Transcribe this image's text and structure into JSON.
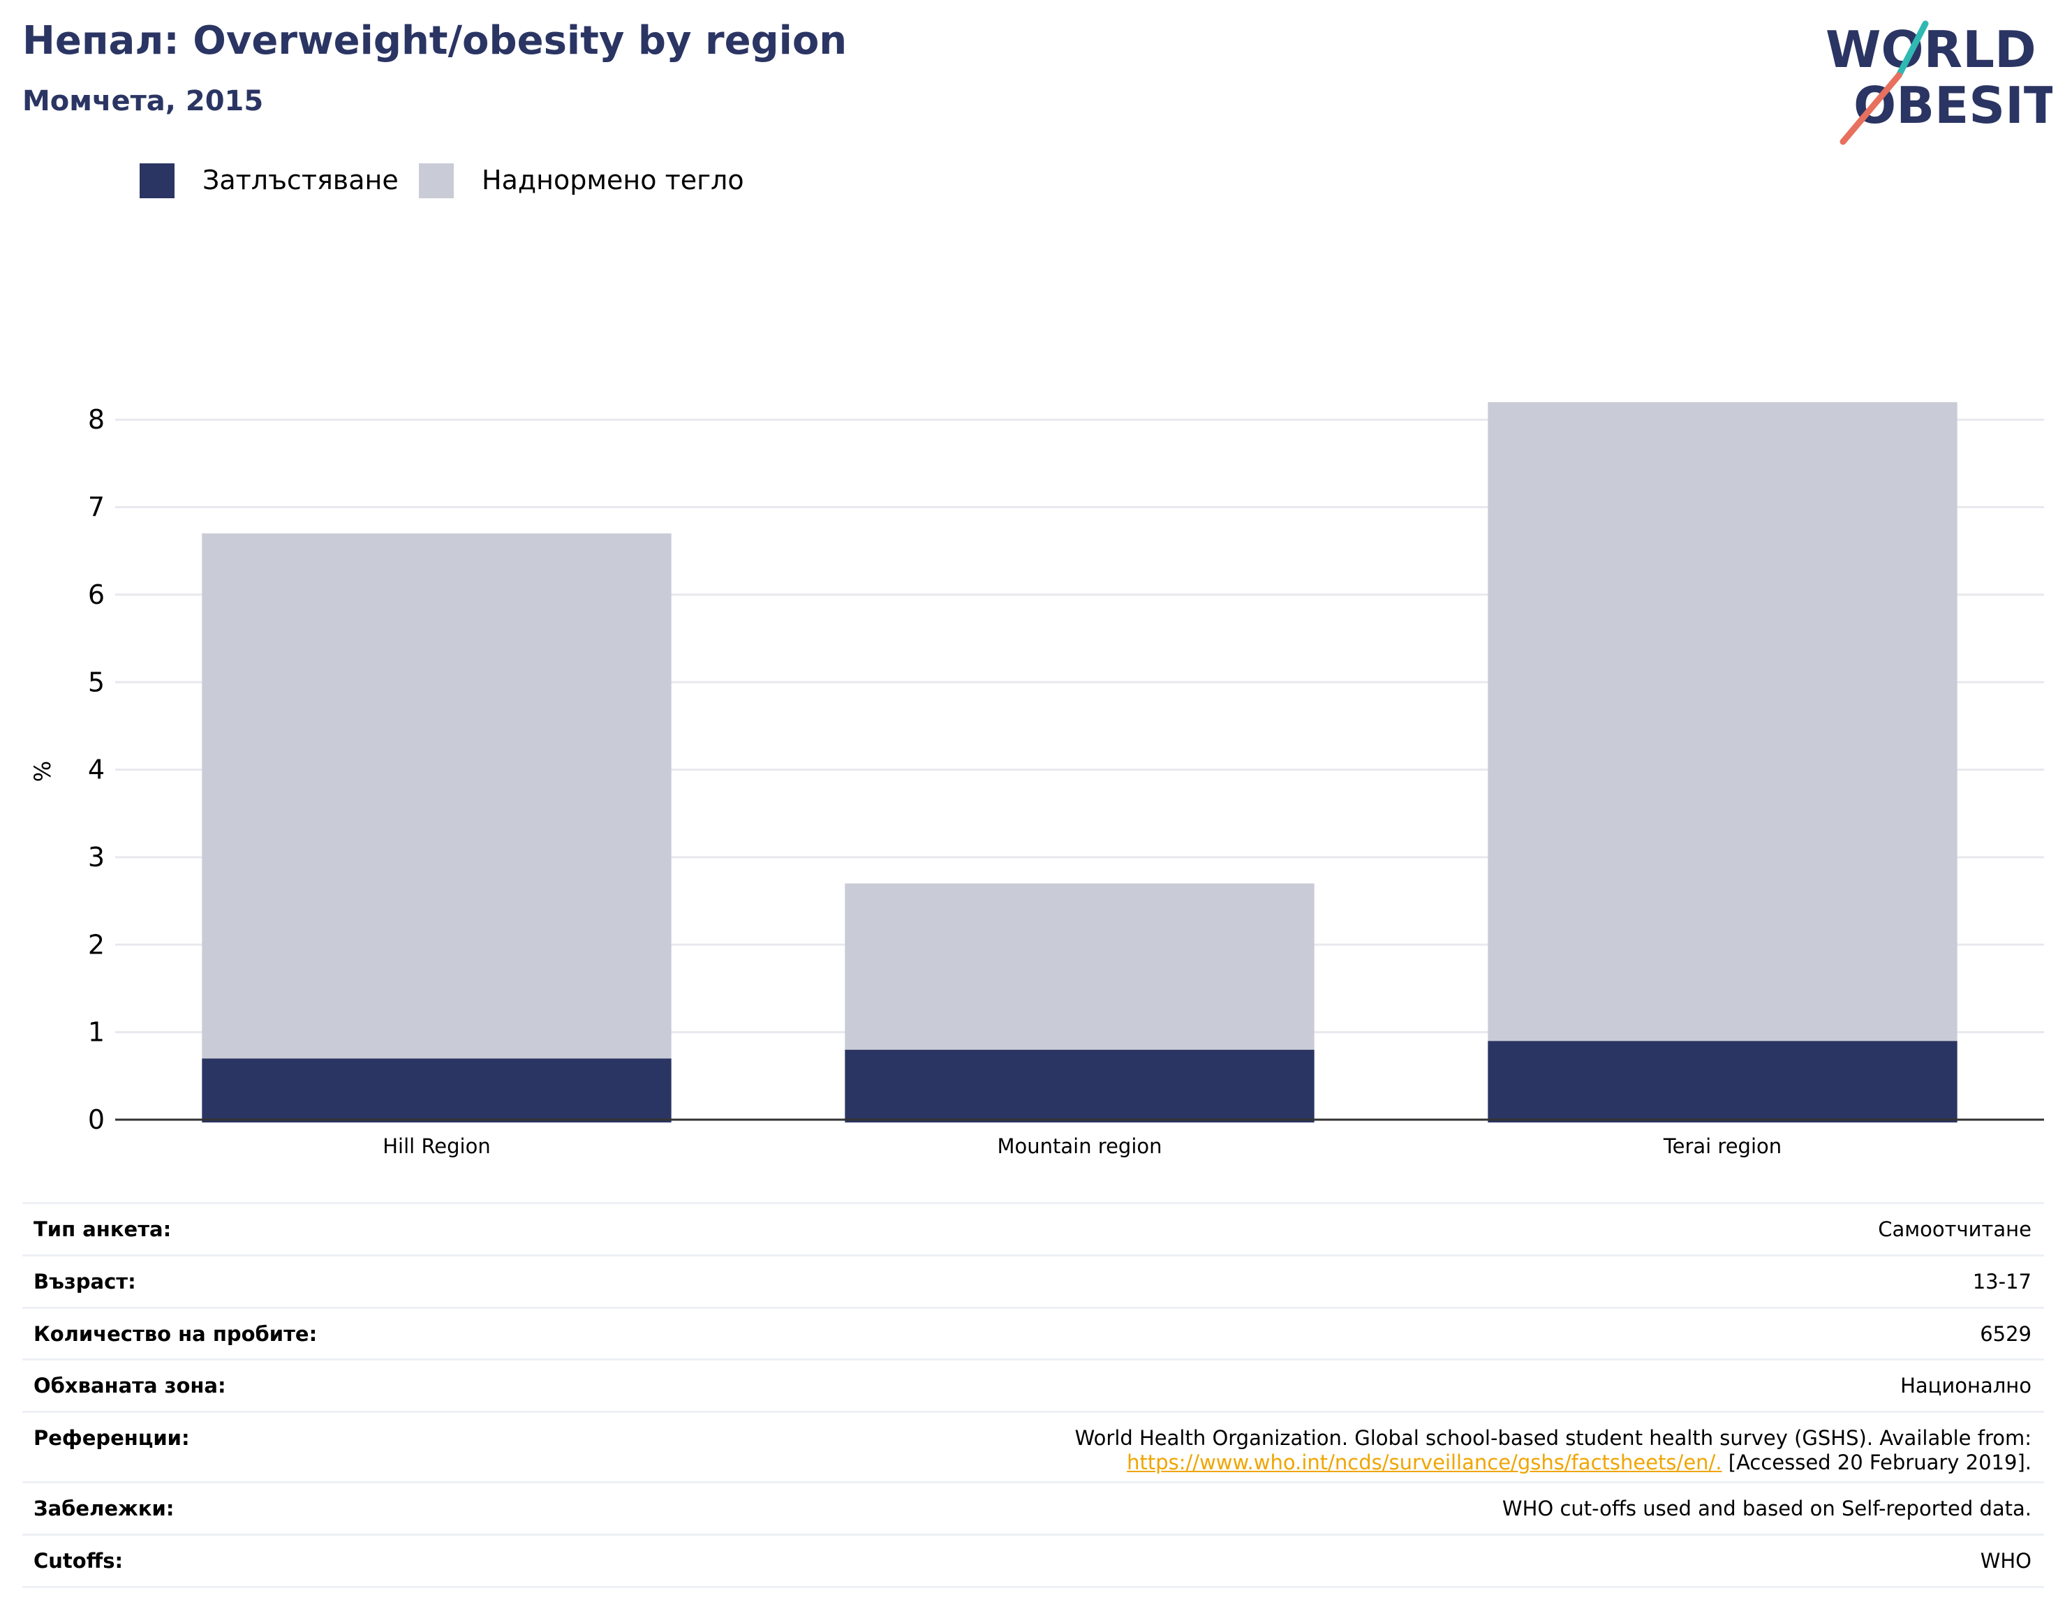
{
  "header": {
    "title": "Непал: Overweight/obesity by region",
    "subtitle": "Момчета, 2015"
  },
  "logo": {
    "line1": "WORLD",
    "line2": "OBESITY",
    "text_color": "#2b3563",
    "slash_top_color": "#30b9b3",
    "slash_bottom_color": "#e8705e"
  },
  "colors": {
    "obesity": "#2b3563",
    "overweight": "#c9cbd6",
    "grid": "#e8e8ee",
    "axis": "#333333",
    "link": "#f0a500"
  },
  "legend": {
    "items": [
      {
        "label": "Затлъстяване",
        "color": "#2b3563"
      },
      {
        "label": "Наднормено тегло",
        "color": "#c9cbd6"
      }
    ]
  },
  "chart_data": {
    "type": "bar",
    "stacked": true,
    "categories": [
      "Hill Region",
      "Mountain region",
      "Terai region"
    ],
    "series": [
      {
        "name": "Затлъстяване",
        "values": [
          0.7,
          0.8,
          0.9
        ]
      },
      {
        "name": "Наднормено тегло",
        "values": [
          6.0,
          1.9,
          7.3
        ]
      }
    ],
    "totals": [
      6.7,
      2.7,
      8.2
    ],
    "ylabel": "%",
    "ylim": [
      0,
      8.6
    ],
    "yticks": [
      0,
      1,
      2,
      3,
      4,
      5,
      6,
      7,
      8
    ],
    "grid": true,
    "legend_position": "top-left"
  },
  "info": {
    "rows": [
      {
        "label": "Тип анкета:",
        "value": "Самоотчитане"
      },
      {
        "label": "Възраст:",
        "value": "13-17"
      },
      {
        "label": "Количество на пробите:",
        "value": "6529"
      },
      {
        "label": "Обхваната зона:",
        "value": "Национално"
      },
      {
        "label": "Референции:",
        "value_line1": "World Health Organization. Global school-based student health survey (GSHS). Available from:",
        "link": "https://www.who.int/ncds/surveillance/gshs/factsheets/en/.",
        "value_after": " [Accessed 20 February 2019]."
      },
      {
        "label": "Забележки:",
        "value": "WHO cut-offs used and based on Self-reported data."
      },
      {
        "label": "Cutoffs:",
        "value": "WHO"
      }
    ]
  }
}
